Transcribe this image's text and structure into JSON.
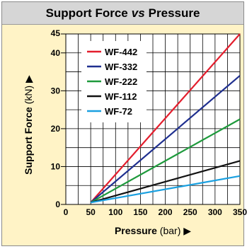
{
  "header": {
    "title_part1": "Support Force",
    "title_vs": "vs",
    "title_part2": "Pressure"
  },
  "chart_data": {
    "type": "line",
    "title": "Support Force vs Pressure",
    "xlabel": "Pressure",
    "xlabel_unit": "(bar)",
    "xlabel_arrow": "▶",
    "ylabel": "Support Force",
    "ylabel_unit": "(kN)",
    "ylabel_arrow": "▶",
    "xlim": [
      0,
      350
    ],
    "ylim": [
      0,
      45
    ],
    "xticks": [
      0,
      50,
      100,
      150,
      200,
      250,
      300,
      350
    ],
    "yticks": [
      0,
      10,
      20,
      30,
      40,
      45
    ],
    "ytick_labels": [
      "0",
      "10",
      "20",
      "30",
      "40",
      "45"
    ],
    "grid": true,
    "legend_position": "top-left",
    "series": [
      {
        "name": "WF-442",
        "color": "#e31e2d",
        "x": [
          50,
          350
        ],
        "y": [
          0.5,
          45
        ]
      },
      {
        "name": "WF-332",
        "color": "#1f2f8f",
        "x": [
          50,
          350
        ],
        "y": [
          0.5,
          34
        ]
      },
      {
        "name": "WF-222",
        "color": "#1e9a3c",
        "x": [
          50,
          350
        ],
        "y": [
          0.5,
          22.5
        ]
      },
      {
        "name": "WF-112",
        "color": "#111111",
        "x": [
          50,
          350
        ],
        "y": [
          0.5,
          11.5
        ]
      },
      {
        "name": "WF-72",
        "color": "#1aa0e0",
        "x": [
          50,
          350
        ],
        "y": [
          0.5,
          7.5
        ]
      }
    ]
  },
  "colors": {
    "background": "#fff3c6",
    "plot_background": "#ffffff",
    "header_background": "#d6d6d6",
    "grid": "#000000"
  }
}
